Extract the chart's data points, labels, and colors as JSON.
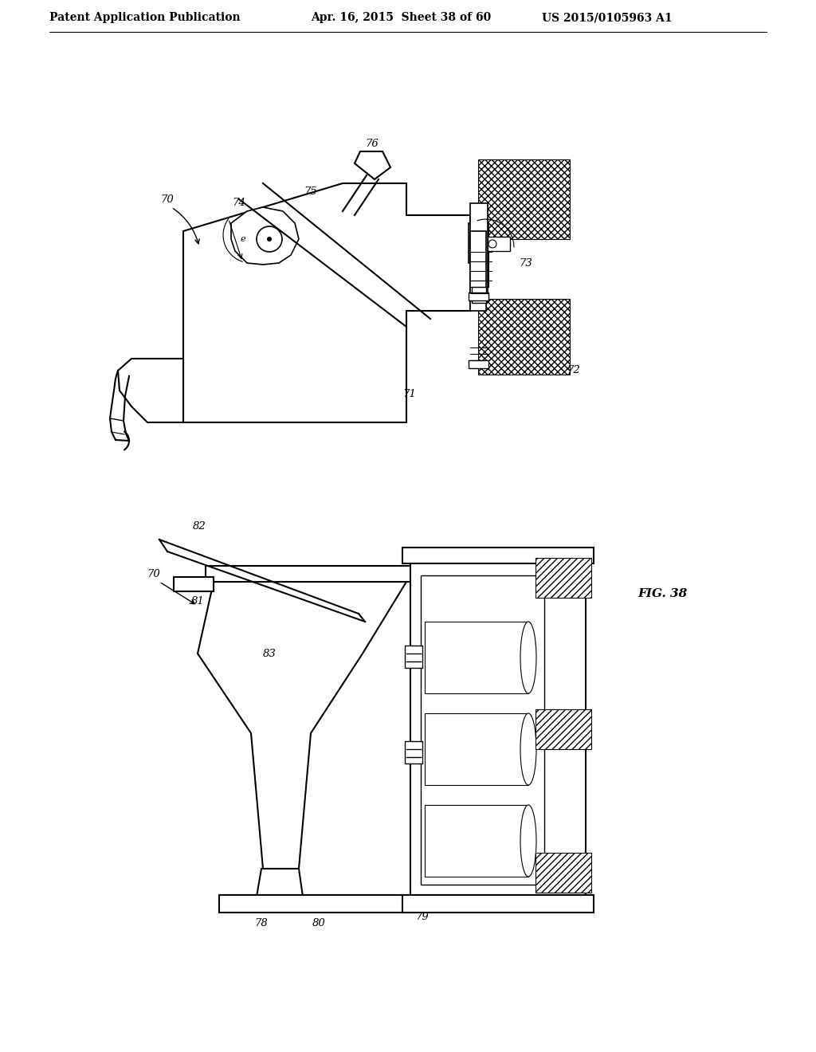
{
  "background_color": "#ffffff",
  "header_left": "Patent Application Publication",
  "header_center": "Apr. 16, 2015  Sheet 38 of 60",
  "header_right": "US 2015/0105963 A1",
  "figure_label": "FIG. 38",
  "line_color": "#000000",
  "text_color": "#000000",
  "header_fontsize": 10,
  "label_fontsize": 9.5,
  "fig_label_fontsize": 11
}
